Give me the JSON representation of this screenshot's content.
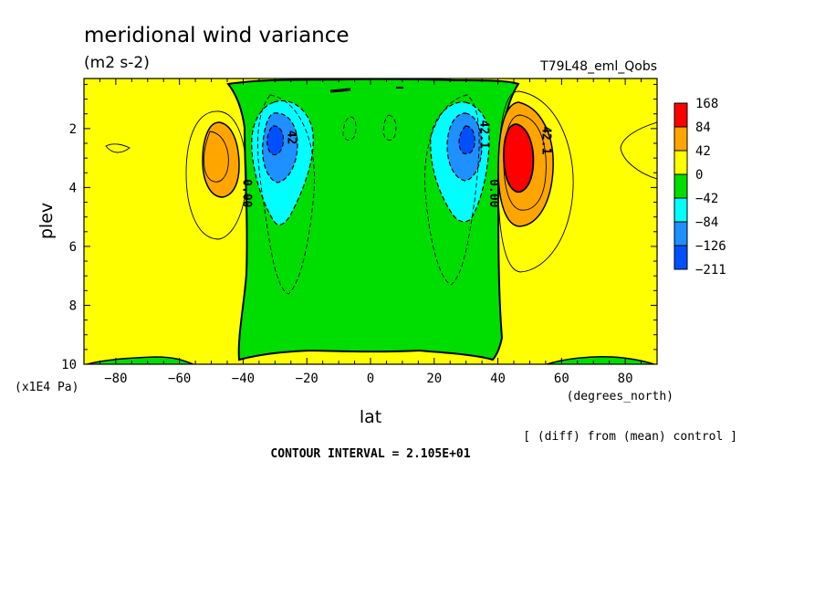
{
  "title": "meridional wind variance",
  "units": "(m2 s-2)",
  "run_label": "T79L48_eml_Qobs",
  "note": "[ (diff) from (mean) control ]",
  "contour_interval": "CONTOUR INTERVAL = 2.105E+01",
  "chart_data": {
    "type": "contour",
    "xlabel": "lat",
    "xunits": "(degrees_north)",
    "ylabel": "plev",
    "yunits": "(x1E4 Pa)",
    "xlim": [
      -90,
      90
    ],
    "ylim": [
      0.3,
      10
    ],
    "x_ticks": [
      -80,
      -60,
      -40,
      -20,
      0,
      20,
      40,
      60,
      80
    ],
    "x_tick_labels": [
      "−80",
      "−60",
      "−40",
      "−20",
      "0",
      "20",
      "40",
      "60",
      "80"
    ],
    "y_ticks": [
      2,
      4,
      6,
      8,
      10
    ],
    "y_tick_labels": [
      "2",
      "4",
      "6",
      "8",
      "10"
    ],
    "colorbar": {
      "labels": [
        "168",
        "84",
        "42",
        "0",
        "−42",
        "−84",
        "−126",
        "−211"
      ],
      "colors": [
        "#ff0000",
        "#ffa500",
        "#ffff00",
        "#00dd00",
        "#00ffff",
        "#1e90ff",
        "#0050ff"
      ]
    },
    "contour_labels": [
      {
        "text": "42",
        "lat": -26,
        "plev": 2.3
      },
      {
        "text": "0.00",
        "lat": -40,
        "plev": 4.2
      },
      {
        "text": "42.1",
        "lat": 34.5,
        "plev": 2.2
      },
      {
        "text": "0.00",
        "lat": 37.5,
        "plev": 4.2
      },
      {
        "text": "42.1",
        "lat": 54,
        "plev": 2.4
      }
    ],
    "fields": {
      "positive_band": "lat < -39 and lat > 40 (yellow, 0 to 42)",
      "negative_band": "lat -39 to 40, plev 0.6 to 9.6 (green, -42 to 0)",
      "features": [
        {
          "sign": "negative",
          "lat": -30,
          "plev": 2.4,
          "min": -126
        },
        {
          "sign": "negative",
          "lat": 30,
          "plev": 2.4,
          "min": -126
        },
        {
          "sign": "positive",
          "lat": -47,
          "plev": 2.8,
          "max": 84
        },
        {
          "sign": "positive",
          "lat": 46,
          "plev": 2.8,
          "max": 168
        }
      ]
    }
  }
}
